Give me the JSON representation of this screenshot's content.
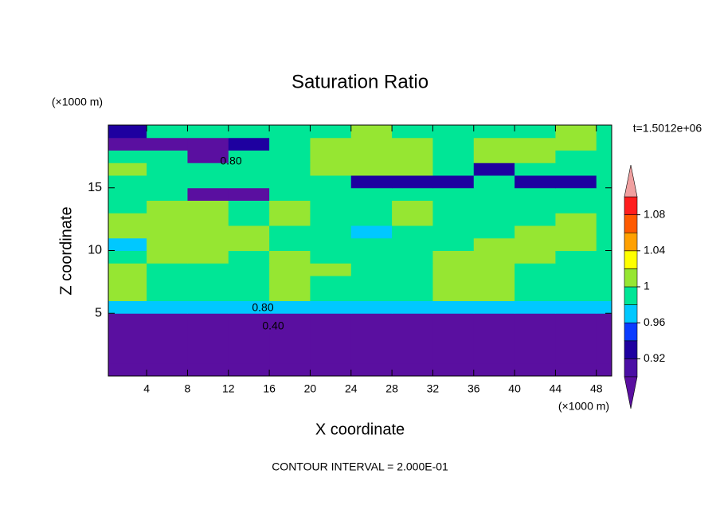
{
  "chart_data": {
    "type": "contour",
    "title": "Saturation Ratio",
    "xlabel": "X coordinate",
    "ylabel": "Z coordinate",
    "x_unit": "(×1000 m)",
    "y_unit": "(×1000 m)",
    "time_label": "t=1.5012e+06",
    "footer": "CONTOUR INTERVAL = 2.000E-01",
    "contour_labels": [
      "0.80",
      "0.80",
      "0.40"
    ],
    "xlim": [
      0.25,
      49.5
    ],
    "ylim": [
      0,
      20
    ],
    "xticks": [
      4,
      8,
      12,
      16,
      20,
      24,
      28,
      32,
      36,
      40,
      44,
      48
    ],
    "yticks": [
      5,
      10,
      15
    ],
    "x": [
      2,
      6,
      10,
      14,
      18,
      22,
      26,
      30,
      34,
      38,
      42,
      46,
      50
    ],
    "y": [
      0.5,
      1.5,
      2.5,
      3.5,
      4.5,
      5.5,
      6.5,
      7.5,
      8.5,
      9.5,
      10.5,
      11.5,
      12.5,
      13.5,
      14.5,
      15.5,
      16.5,
      17.5,
      18.5,
      19.5
    ],
    "z": [
      [
        0.3,
        0.3,
        0.3,
        0.3,
        0.3,
        0.3,
        0.3,
        0.3,
        0.3,
        0.3,
        0.3,
        0.3,
        0.3
      ],
      [
        0.3,
        0.3,
        0.3,
        0.3,
        0.3,
        0.3,
        0.3,
        0.3,
        0.3,
        0.3,
        0.3,
        0.3,
        0.3
      ],
      [
        0.35,
        0.35,
        0.35,
        0.35,
        0.35,
        0.35,
        0.35,
        0.35,
        0.35,
        0.35,
        0.35,
        0.35,
        0.35
      ],
      [
        0.45,
        0.45,
        0.45,
        0.45,
        0.45,
        0.45,
        0.45,
        0.45,
        0.45,
        0.45,
        0.45,
        0.45,
        0.45
      ],
      [
        0.7,
        0.7,
        0.7,
        0.7,
        0.7,
        0.7,
        0.7,
        0.7,
        0.7,
        0.7,
        0.7,
        0.7,
        0.7
      ],
      [
        0.97,
        0.97,
        0.97,
        0.97,
        0.97,
        0.97,
        0.97,
        0.97,
        0.97,
        0.97,
        0.97,
        0.97,
        0.97
      ],
      [
        1.01,
        0.99,
        0.99,
        0.99,
        1.01,
        0.99,
        0.99,
        0.99,
        1.01,
        1.01,
        0.99,
        0.99,
        0.99
      ],
      [
        1.01,
        0.99,
        0.99,
        0.99,
        1.01,
        0.99,
        0.99,
        0.99,
        1.01,
        1.01,
        0.99,
        0.99,
        0.99
      ],
      [
        1.01,
        0.99,
        0.99,
        0.99,
        1.01,
        1.01,
        0.99,
        0.99,
        1.01,
        1.01,
        0.99,
        0.99,
        0.99
      ],
      [
        0.99,
        1.01,
        1.01,
        0.99,
        1.01,
        0.99,
        0.99,
        0.99,
        1.01,
        1.01,
        1.01,
        0.99,
        0.99
      ],
      [
        0.97,
        1.01,
        1.01,
        1.01,
        0.99,
        0.99,
        0.99,
        0.99,
        0.99,
        1.01,
        1.01,
        1.01,
        0.99
      ],
      [
        1.01,
        1.01,
        1.01,
        1.01,
        0.99,
        0.99,
        0.97,
        0.99,
        0.99,
        0.99,
        1.01,
        1.01,
        0.99
      ],
      [
        1.01,
        1.01,
        1.01,
        0.99,
        1.01,
        0.99,
        0.99,
        1.01,
        0.99,
        0.99,
        0.99,
        1.01,
        0.99
      ],
      [
        0.99,
        1.01,
        1.01,
        0.99,
        1.01,
        0.99,
        0.99,
        1.01,
        0.99,
        0.99,
        0.99,
        0.99,
        0.99
      ],
      [
        0.99,
        0.99,
        0.85,
        0.8,
        0.99,
        0.99,
        0.99,
        0.99,
        0.99,
        0.99,
        0.99,
        0.99,
        0.99
      ],
      [
        0.99,
        0.99,
        0.99,
        0.99,
        0.99,
        0.99,
        0.93,
        0.93,
        0.93,
        0.99,
        0.93,
        0.93,
        0.99
      ],
      [
        1.01,
        0.99,
        0.99,
        0.99,
        0.99,
        1.01,
        1.01,
        1.01,
        0.99,
        0.93,
        0.99,
        0.99,
        0.99
      ],
      [
        0.99,
        0.99,
        0.8,
        0.99,
        0.99,
        1.01,
        1.01,
        1.01,
        0.99,
        1.01,
        1.01,
        0.99,
        0.99
      ],
      [
        0.8,
        0.85,
        0.8,
        0.93,
        0.99,
        1.01,
        1.01,
        1.01,
        0.99,
        1.01,
        1.01,
        1.01,
        0.99
      ],
      [
        0.93,
        0.99,
        0.99,
        0.99,
        0.99,
        0.99,
        1.01,
        0.99,
        0.99,
        0.99,
        0.99,
        1.01,
        0.99
      ]
    ],
    "colorbar": {
      "levels": [
        0.9,
        0.92,
        0.94,
        0.96,
        0.98,
        1,
        1.02,
        1.04,
        1.06,
        1.08,
        1.1
      ],
      "colors": [
        "#5a0fa0",
        "#4b0fa5",
        "#1e00a0",
        "#0a3cff",
        "#00c8ff",
        "#00e696",
        "#96e632",
        "#ffff00",
        "#ffa000",
        "#ff5a00",
        "#ff1e1e",
        "#f0a0a0"
      ],
      "ticks": [
        0.92,
        0.96,
        1,
        1.04,
        1.08
      ]
    }
  }
}
